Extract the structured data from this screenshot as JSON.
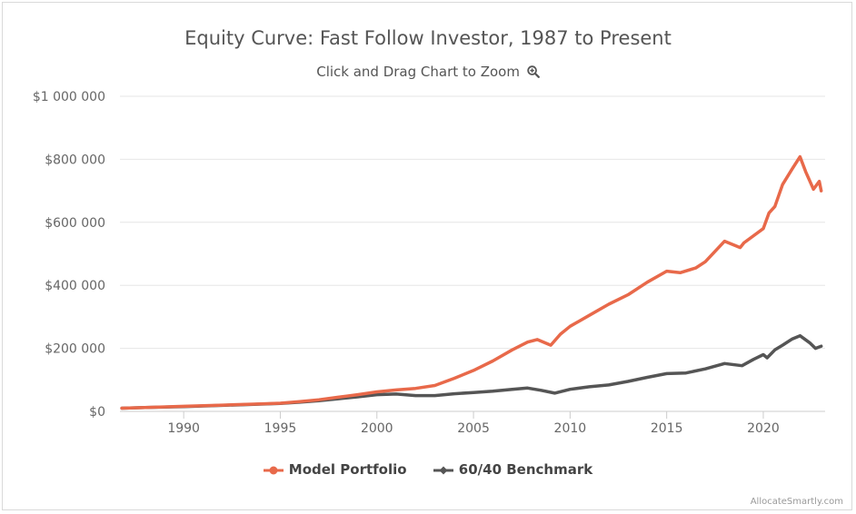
{
  "chart_data": {
    "type": "line",
    "title": "Equity Curve: Fast Follow Investor, 1987 to Present",
    "subtitle": "Click and Drag Chart to Zoom",
    "xlim": [
      1986.7,
      2023.2
    ],
    "ylim": [
      0,
      1000000
    ],
    "x_ticks": [
      1990,
      1995,
      2000,
      2005,
      2010,
      2015,
      2020
    ],
    "x_tick_labels": [
      "1990",
      "1995",
      "2000",
      "2005",
      "2010",
      "2015",
      "2020"
    ],
    "y_ticks": [
      0,
      200000,
      400000,
      600000,
      800000,
      1000000
    ],
    "y_tick_labels": [
      "$0",
      "$200 000",
      "$400 000",
      "$600 000",
      "$800 000",
      "$1 000 000"
    ],
    "grid": "horizontal",
    "legend_position": "bottom-center",
    "series": [
      {
        "name": "Model Portfolio",
        "color": "#e8694a",
        "points": [
          [
            1986.8,
            10000
          ],
          [
            1988,
            12000
          ],
          [
            1990,
            16000
          ],
          [
            1992,
            20000
          ],
          [
            1994,
            24000
          ],
          [
            1995,
            26000
          ],
          [
            1996,
            31000
          ],
          [
            1997,
            37000
          ],
          [
            1998,
            45000
          ],
          [
            1999,
            53000
          ],
          [
            2000,
            62000
          ],
          [
            2001,
            68000
          ],
          [
            2002,
            73000
          ],
          [
            2003,
            82000
          ],
          [
            2004,
            105000
          ],
          [
            2005,
            130000
          ],
          [
            2006,
            160000
          ],
          [
            2007,
            195000
          ],
          [
            2007.8,
            220000
          ],
          [
            2008.3,
            228000
          ],
          [
            2009,
            210000
          ],
          [
            2009.5,
            245000
          ],
          [
            2010,
            270000
          ],
          [
            2011,
            305000
          ],
          [
            2012,
            340000
          ],
          [
            2013,
            370000
          ],
          [
            2014,
            410000
          ],
          [
            2015,
            445000
          ],
          [
            2015.7,
            440000
          ],
          [
            2016.5,
            455000
          ],
          [
            2017,
            475000
          ],
          [
            2018,
            540000
          ],
          [
            2018.8,
            520000
          ],
          [
            2019,
            535000
          ],
          [
            2020,
            580000
          ],
          [
            2020.3,
            630000
          ],
          [
            2020.6,
            650000
          ],
          [
            2021,
            720000
          ],
          [
            2021.5,
            770000
          ],
          [
            2021.9,
            808000
          ],
          [
            2022.2,
            760000
          ],
          [
            2022.6,
            705000
          ],
          [
            2022.9,
            730000
          ],
          [
            2023.0,
            700000
          ]
        ]
      },
      {
        "name": "60/40 Benchmark",
        "color": "#555555",
        "points": [
          [
            1986.8,
            10000
          ],
          [
            1988,
            12000
          ],
          [
            1990,
            15000
          ],
          [
            1992,
            19000
          ],
          [
            1994,
            23000
          ],
          [
            1995,
            25000
          ],
          [
            1996,
            29000
          ],
          [
            1997,
            34000
          ],
          [
            1998,
            40000
          ],
          [
            1999,
            46000
          ],
          [
            2000,
            53000
          ],
          [
            2001,
            55000
          ],
          [
            2002,
            50000
          ],
          [
            2003,
            50000
          ],
          [
            2004,
            56000
          ],
          [
            2005,
            60000
          ],
          [
            2006,
            64000
          ],
          [
            2007,
            70000
          ],
          [
            2007.8,
            74000
          ],
          [
            2008.5,
            67000
          ],
          [
            2009.2,
            58000
          ],
          [
            2010,
            70000
          ],
          [
            2011,
            78000
          ],
          [
            2012,
            84000
          ],
          [
            2013,
            95000
          ],
          [
            2014,
            108000
          ],
          [
            2015,
            120000
          ],
          [
            2016,
            122000
          ],
          [
            2017,
            135000
          ],
          [
            2018,
            152000
          ],
          [
            2018.9,
            145000
          ],
          [
            2019.5,
            165000
          ],
          [
            2020,
            180000
          ],
          [
            2020.2,
            170000
          ],
          [
            2020.6,
            195000
          ],
          [
            2021,
            210000
          ],
          [
            2021.5,
            230000
          ],
          [
            2021.9,
            240000
          ],
          [
            2022.4,
            218000
          ],
          [
            2022.7,
            200000
          ],
          [
            2023.0,
            207000
          ]
        ]
      }
    ]
  },
  "credits": "AllocateSmartly.com"
}
